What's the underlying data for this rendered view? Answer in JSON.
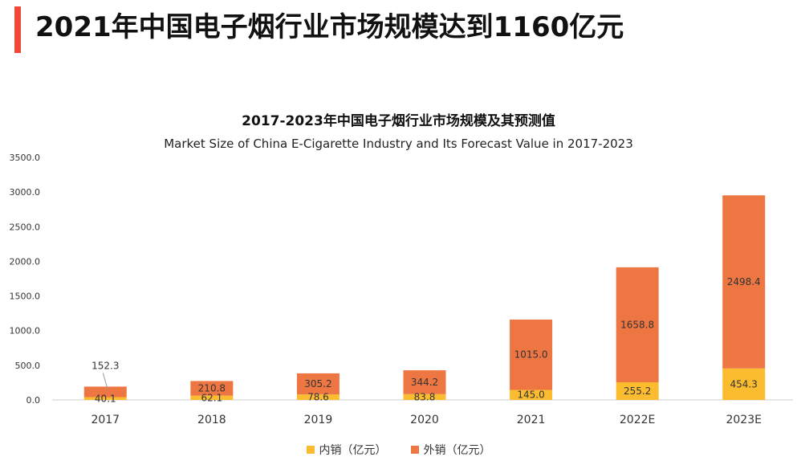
{
  "page": {
    "title": "2021年中国电子烟行业市场规模达到1160亿元",
    "accent_color": "#f2483a"
  },
  "chart_data": {
    "type": "bar",
    "stacked": true,
    "title": "2017-2023年中国电子烟行业市场规模及其预测值",
    "subtitle": "Market Size of China E-Cigarette Industry and Its Forecast Value in 2017-2023",
    "categories": [
      "2017",
      "2018",
      "2019",
      "2020",
      "2021",
      "2022E",
      "2023E"
    ],
    "series": [
      {
        "name": "内销（亿元）",
        "color": "#fbbd2f",
        "values": [
          40.1,
          62.1,
          78.6,
          83.8,
          145.0,
          255.2,
          454.3
        ],
        "labels": [
          "40.1",
          "62.1",
          "78.6",
          "83.8",
          "145.0",
          "255.2",
          "454.3"
        ]
      },
      {
        "name": "外销（亿元）",
        "color": "#ee7642",
        "values": [
          152.3,
          210.8,
          305.2,
          344.2,
          1015.0,
          1658.8,
          2498.4
        ],
        "labels": [
          "152.3",
          "210.8",
          "305.2",
          "344.2",
          "1015.0",
          "1658.8",
          "2498.4"
        ]
      }
    ],
    "yticks": [
      "0.0",
      "500.0",
      "1000.0",
      "1500.0",
      "2000.0",
      "2500.0",
      "3000.0",
      "3500.0"
    ],
    "ylim": [
      0,
      3500
    ],
    "grid": false,
    "legend": "bottom-center"
  }
}
